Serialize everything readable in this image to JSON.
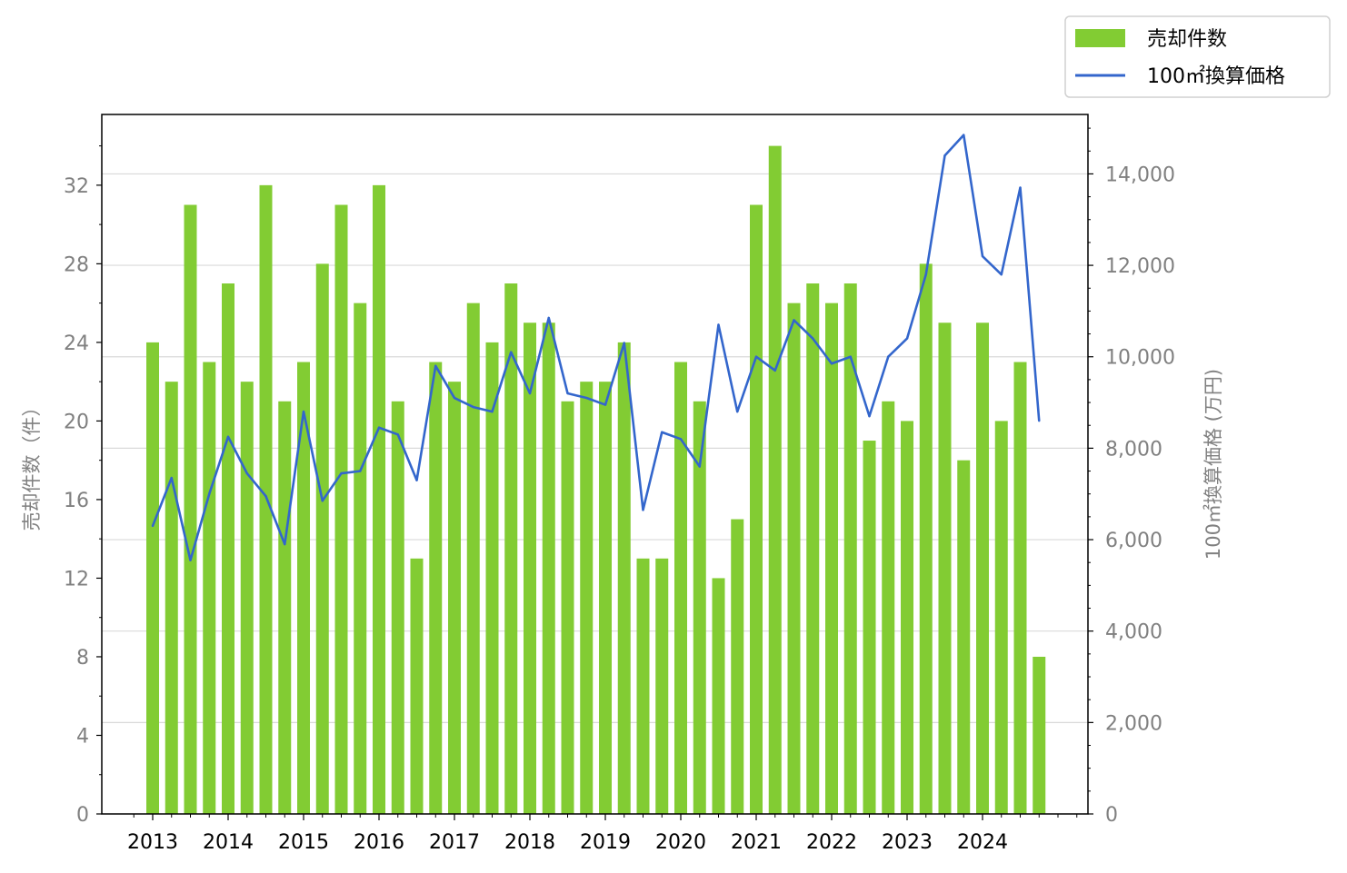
{
  "chart_data": {
    "type": "bar",
    "x_tick_labels": [
      "2013",
      "2014",
      "2015",
      "2016",
      "2017",
      "2018",
      "2019",
      "2020",
      "2021",
      "2022",
      "2023",
      "2024"
    ],
    "quarters_start": "2013",
    "y_left": {
      "label": "売却件数（件）",
      "range": [
        0,
        35.6
      ],
      "ticks": [
        0,
        4,
        8,
        12,
        16,
        20,
        24,
        28,
        32
      ],
      "tick_labels": [
        "0",
        "4",
        "8",
        "12",
        "16",
        "20",
        "24",
        "28",
        "32"
      ]
    },
    "y_right": {
      "label": "100㎡換算価格 (万円)",
      "range": [
        0,
        15300
      ],
      "ticks": [
        0,
        2000,
        4000,
        6000,
        8000,
        10000,
        12000,
        14000
      ],
      "tick_labels": [
        "0",
        "2,000",
        "4,000",
        "6,000",
        "8,000",
        "10,000",
        "12,000",
        "14,000"
      ]
    },
    "grid": "horizontal (right axis)",
    "legend_position": "top-right, outside",
    "series": [
      {
        "name": "売却件数",
        "type": "bar",
        "axis": "left",
        "color": "#82cc33",
        "values": [
          24,
          22,
          31,
          23,
          27,
          22,
          32,
          21,
          23,
          28,
          31,
          26,
          32,
          21,
          13,
          23,
          22,
          26,
          24,
          27,
          25,
          25,
          21,
          22,
          22,
          24,
          13,
          13,
          23,
          21,
          12,
          15,
          31,
          34,
          26,
          27,
          26,
          27,
          19,
          21,
          20,
          28,
          25,
          18,
          25,
          20,
          23,
          8
        ]
      },
      {
        "name": "100㎡換算価格",
        "type": "line",
        "axis": "right",
        "color": "#3366cc",
        "values": [
          6300,
          7350,
          5550,
          7000,
          8250,
          7450,
          6950,
          5900,
          8800,
          6850,
          7450,
          7500,
          8450,
          8300,
          7300,
          9800,
          9100,
          8900,
          8800,
          10100,
          9200,
          10850,
          9200,
          9100,
          8950,
          10300,
          6650,
          8350,
          8200,
          7600,
          10700,
          8800,
          10000,
          9700,
          10800,
          10400,
          9850,
          10000,
          8700,
          10000,
          10400,
          11800,
          14400,
          14850,
          12200,
          11800,
          13700,
          8600
        ]
      }
    ]
  }
}
